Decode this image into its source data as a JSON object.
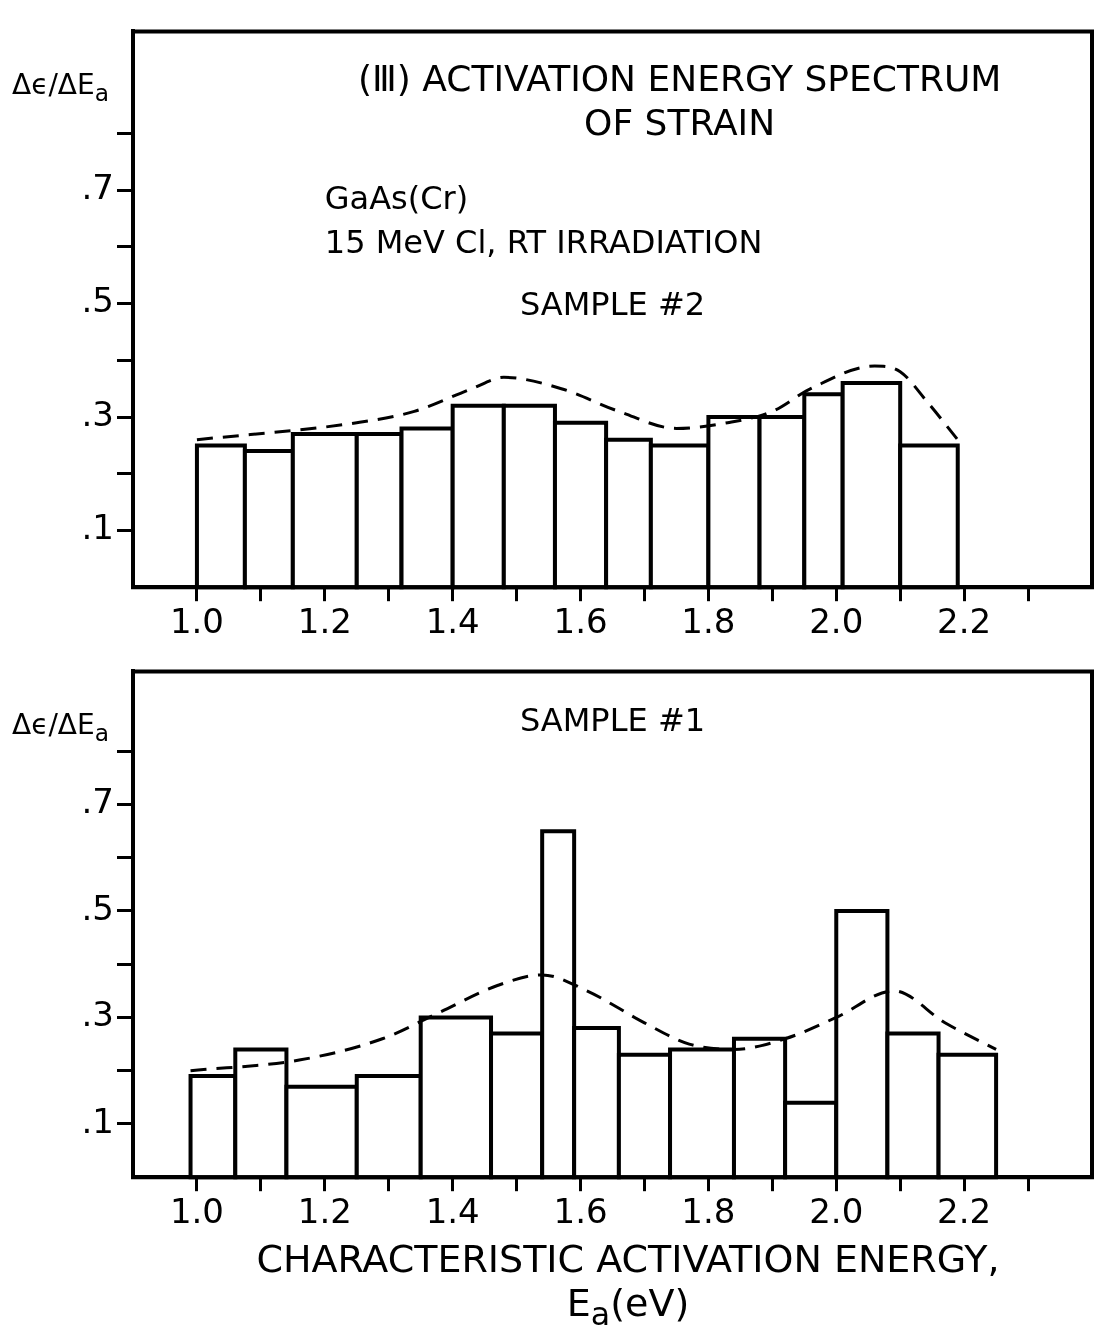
{
  "chart_data": [
    {
      "type": "histogram",
      "title": "(Ⅲ) ACTIVATION ENERGY SPECTRUM OF STRAIN",
      "ylabel": "Δϵ/ΔE$_{a}$",
      "annotations": [
        "GaAs(Cr)",
        "15 MeV Cl, RT IRRADIATION",
        "SAMPLE #2"
      ],
      "color": "#000000",
      "bins": [
        1.0,
        1.075,
        1.15,
        1.25,
        1.32,
        1.4,
        1.48,
        1.56,
        1.64,
        1.71,
        1.8,
        1.88,
        1.95,
        2.01,
        2.1,
        2.19
      ],
      "values": [
        0.25,
        0.24,
        0.27,
        0.27,
        0.28,
        0.32,
        0.32,
        0.29,
        0.26,
        0.25,
        0.3,
        0.3,
        0.34,
        0.36,
        0.25
      ],
      "series": [
        {
          "type": "line",
          "color": "#000000",
          "line_style": "dashed",
          "x": [
            1.0,
            1.25,
            1.34,
            1.43,
            1.48,
            1.57,
            1.66,
            1.75,
            1.83,
            1.9,
            1.96,
            2.06,
            2.1,
            2.14,
            2.19
          ],
          "values": [
            0.26,
            0.29,
            0.31,
            0.35,
            0.37,
            0.35,
            0.31,
            0.28,
            0.29,
            0.31,
            0.35,
            0.39,
            0.38,
            0.33,
            0.26
          ]
        }
      ],
      "xlim": [
        0.9,
        2.4
      ],
      "xticks": [
        {
          "value": 1,
          "label": "1.0"
        },
        {
          "value": 1.1,
          "label": null
        },
        {
          "value": 1.2,
          "label": "1.2"
        },
        {
          "value": 1.3,
          "label": null
        },
        {
          "value": 1.4,
          "label": "1.4"
        },
        {
          "value": 1.5,
          "label": null
        },
        {
          "value": 1.6,
          "label": "1.6"
        },
        {
          "value": 1.7,
          "label": null
        },
        {
          "value": 1.8,
          "label": "1.8"
        },
        {
          "value": 1.9,
          "label": null
        },
        {
          "value": 2,
          "label": "2.0"
        },
        {
          "value": 2.1,
          "label": null
        },
        {
          "value": 2.2,
          "label": "2.2"
        },
        {
          "value": 2.3,
          "label": null
        }
      ],
      "ylim": [
        0,
        0.98
      ],
      "yticks": [
        {
          "value": 0.1,
          "label": ".1"
        },
        {
          "value": 0.2,
          "label": null
        },
        {
          "value": 0.3,
          "label": ".3"
        },
        {
          "value": 0.4,
          "label": null
        },
        {
          "value": 0.5,
          "label": ".5"
        },
        {
          "value": 0.6,
          "label": null
        },
        {
          "value": 0.7,
          "label": ".7"
        },
        {
          "value": 0.8,
          "label": null
        }
      ]
    },
    {
      "type": "histogram",
      "ylabel": "Δϵ/ΔE$_{a}$",
      "xlabel": "CHARACTERISTIC ACTIVATION ENERGY, E$_{a}$(eV)",
      "annotations": [
        "SAMPLE #1"
      ],
      "color": "#000000",
      "bins": [
        0.99,
        1.06,
        1.14,
        1.25,
        1.35,
        1.46,
        1.54,
        1.59,
        1.66,
        1.74,
        1.84,
        1.92,
        2.0,
        2.08,
        2.16,
        2.25
      ],
      "values": [
        0.19,
        0.24,
        0.17,
        0.19,
        0.3,
        0.27,
        0.65,
        0.28,
        0.23,
        0.24,
        0.26,
        0.14,
        0.5,
        0.27,
        0.23
      ],
      "series": [
        {
          "type": "line",
          "color": "#000000",
          "line_style": "dashed",
          "x": [
            0.99,
            1.16,
            1.29,
            1.38,
            1.47,
            1.54,
            1.61,
            1.7,
            1.77,
            1.84,
            1.92,
            2.0,
            2.09,
            2.17,
            2.25
          ],
          "values": [
            0.2,
            0.22,
            0.26,
            0.31,
            0.36,
            0.38,
            0.35,
            0.29,
            0.25,
            0.24,
            0.26,
            0.3,
            0.35,
            0.29,
            0.24
          ]
        }
      ],
      "xlim": [
        0.9,
        2.4
      ],
      "xticks": [
        {
          "value": 1,
          "label": "1.0"
        },
        {
          "value": 1.1,
          "label": null
        },
        {
          "value": 1.2,
          "label": "1.2"
        },
        {
          "value": 1.3,
          "label": null
        },
        {
          "value": 1.4,
          "label": "1.4"
        },
        {
          "value": 1.5,
          "label": null
        },
        {
          "value": 1.6,
          "label": "1.6"
        },
        {
          "value": 1.7,
          "label": null
        },
        {
          "value": 1.8,
          "label": "1.8"
        },
        {
          "value": 1.9,
          "label": null
        },
        {
          "value": 2,
          "label": "2.0"
        },
        {
          "value": 2.1,
          "label": null
        },
        {
          "value": 2.2,
          "label": "2.2"
        },
        {
          "value": 2.3,
          "label": null
        }
      ],
      "ylim": [
        0,
        0.95
      ],
      "yticks": [
        {
          "value": 0.1,
          "label": ".1"
        },
        {
          "value": 0.2,
          "label": null
        },
        {
          "value": 0.3,
          "label": ".3"
        },
        {
          "value": 0.4,
          "label": null
        },
        {
          "value": 0.5,
          "label": ".5"
        },
        {
          "value": 0.6,
          "label": null
        },
        {
          "value": 0.7,
          "label": ".7"
        },
        {
          "value": 0.8,
          "label": null
        }
      ]
    }
  ]
}
